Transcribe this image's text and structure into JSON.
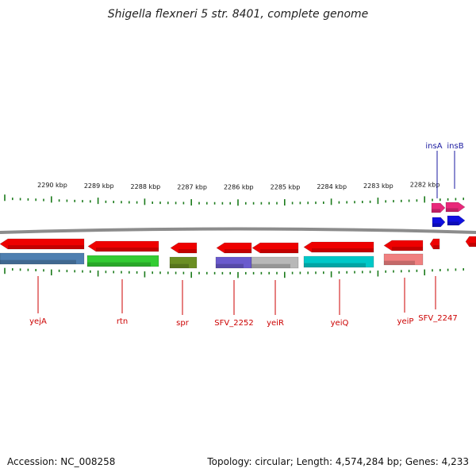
{
  "title": "Shigella flexneri 5 str. 8401, complete genome",
  "footer": {
    "accession": "Accession: NC_008258",
    "summary": "Topology: circular; Length: 4,574,284 bp; Genes: 4,233"
  },
  "scale_labels": [
    "2290 kbp",
    "2289 kbp",
    "2288 kbp",
    "2287 kbp",
    "2286 kbp",
    "2285 kbp",
    "2284 kbp",
    "2283 kbp",
    "2282 kbp"
  ],
  "gene_labels": [
    "yejA",
    "rtn",
    "spr",
    "SFV_2252",
    "yeiR",
    "yeiQ",
    "yeiP",
    "SFV_2247",
    "insA",
    "insB"
  ],
  "colors": {
    "backbone": "#8c8c8c",
    "tick": "#1a7a1a",
    "gene_red": "#ee0000",
    "label_red": "#cc0000",
    "label_blue": "#1a1aa0",
    "pink": "#e8287a",
    "blue": "#1010e0",
    "steelblue": "#4f7fb0",
    "green": "#33cc33",
    "olive": "#6b8e23",
    "slateblue": "#6a5acd",
    "silver": "#b8b8b8",
    "cyan": "#00c8c8",
    "salmon": "#f08080"
  }
}
